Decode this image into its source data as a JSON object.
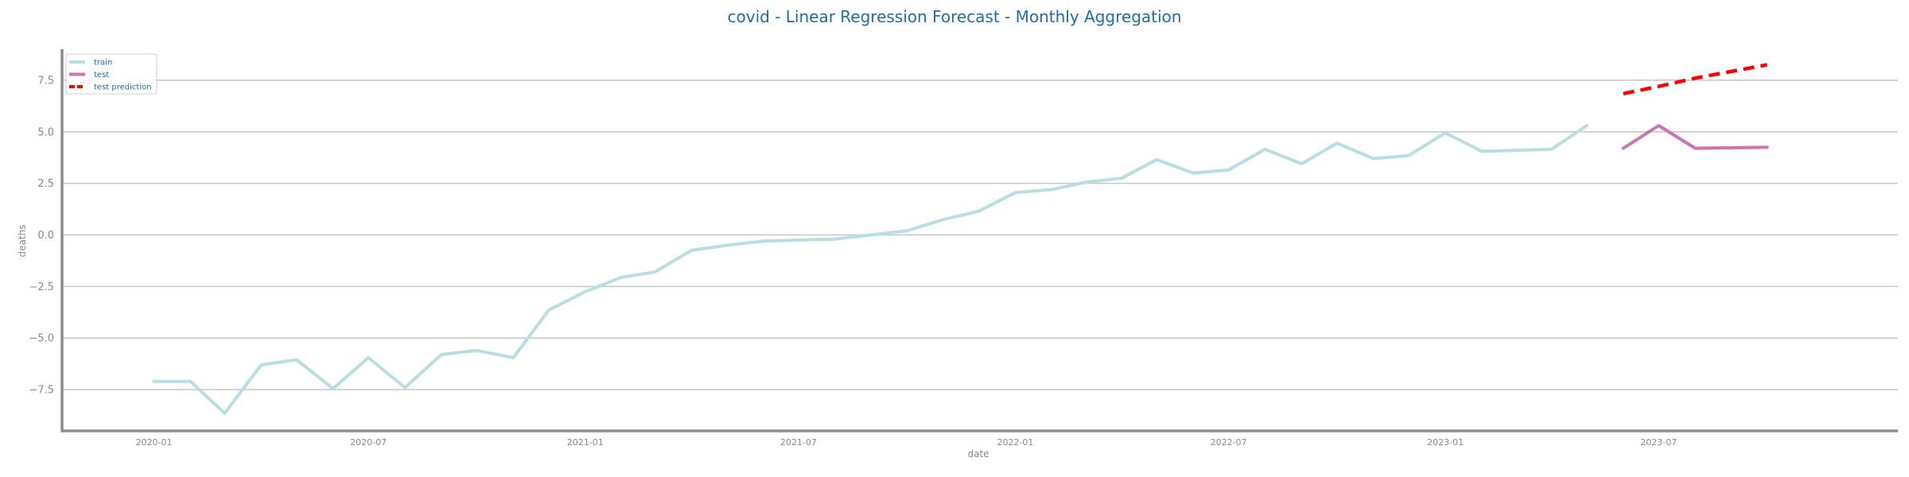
{
  "chart_data": {
    "type": "line",
    "title": "covid - Linear Regression Forecast - Monthly Aggregation",
    "xlabel": "date",
    "ylabel": "deaths",
    "ylim": [
      -9.5,
      9.0
    ],
    "xlim": [
      "2019-10-15",
      "2024-01-20"
    ],
    "y_ticks": [
      -7.5,
      -5.0,
      -2.5,
      0.0,
      2.5,
      5.0,
      7.5
    ],
    "y_tick_labels": [
      "−7.5",
      "−5.0",
      "−2.5",
      "0.0",
      "2.5",
      "5.0",
      "7.5"
    ],
    "x_ticks": [
      "2020-01",
      "2020-07",
      "2021-01",
      "2021-07",
      "2022-01",
      "2022-07",
      "2023-01",
      "2023-07"
    ],
    "grid": "horizontal",
    "legend_position": "top-left",
    "legend_entries": [
      "train",
      "test",
      "test prediction"
    ],
    "series": [
      {
        "name": "train",
        "color": "#b9dde3",
        "style": "solid",
        "x": [
          "2020-01",
          "2020-02",
          "2020-03",
          "2020-04",
          "2020-05",
          "2020-06",
          "2020-07",
          "2020-08",
          "2020-09",
          "2020-10",
          "2020-11",
          "2020-12",
          "2021-01",
          "2021-02",
          "2021-03",
          "2021-04",
          "2021-05",
          "2021-06",
          "2021-07",
          "2021-08",
          "2021-09",
          "2021-10",
          "2021-11",
          "2021-12",
          "2022-01",
          "2022-02",
          "2022-03",
          "2022-04",
          "2022-05",
          "2022-06",
          "2022-07",
          "2022-08",
          "2022-09",
          "2022-10",
          "2022-11",
          "2022-12",
          "2023-01",
          "2023-02",
          "2023-03",
          "2023-04",
          "2023-05"
        ],
        "y": [
          -7.1,
          -7.1,
          -8.65,
          -6.3,
          -6.05,
          -7.45,
          -5.95,
          -7.4,
          -5.8,
          -5.6,
          -5.95,
          -3.65,
          -2.75,
          -2.05,
          -1.8,
          -0.75,
          -0.5,
          -0.3,
          -0.25,
          -0.2,
          0.0,
          0.2,
          0.75,
          1.15,
          2.05,
          2.2,
          2.55,
          2.75,
          3.65,
          3.0,
          3.15,
          4.15,
          3.45,
          4.45,
          3.7,
          3.85,
          4.95,
          4.05,
          4.1,
          4.15,
          5.3
        ]
      },
      {
        "name": "test",
        "color": "#d072ae",
        "style": "solid",
        "x": [
          "2023-06",
          "2023-07",
          "2023-08",
          "2023-10"
        ],
        "y": [
          4.2,
          5.3,
          4.2,
          4.25
        ]
      },
      {
        "name": "test prediction",
        "color": "#ff0000",
        "style": "dashed",
        "x": [
          "2023-06",
          "2023-07",
          "2023-08",
          "2023-10"
        ],
        "y": [
          6.85,
          7.2,
          7.6,
          8.25
        ]
      }
    ]
  }
}
